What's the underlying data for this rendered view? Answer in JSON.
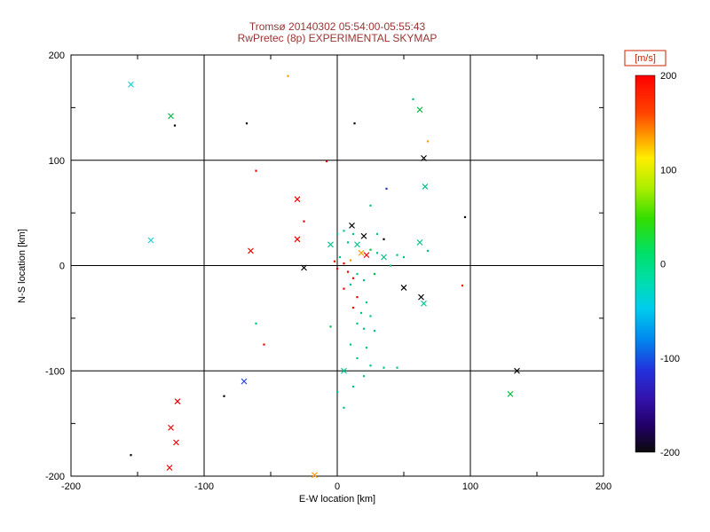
{
  "chart_data": {
    "type": "scatter",
    "title": "Tromsø 20140302 05:54:00-05:55:43",
    "subtitle": "RwPretec (8p) EXPERIMENTAL SKYMAP",
    "xlabel": "E-W location [km]",
    "ylabel": "N-S location [km]",
    "xlim": [
      -200,
      200
    ],
    "ylim": [
      -200,
      200
    ],
    "xticks": [
      -200,
      -100,
      0,
      100,
      200
    ],
    "yticks": [
      -200,
      -100,
      0,
      100,
      200
    ],
    "grid": true,
    "colorbar": {
      "label": "[m/s]",
      "min": -200,
      "max": 200,
      "ticks": [
        {
          "v": 200,
          "color": "#cc2200"
        },
        {
          "v": 100,
          "color": "#000000"
        },
        {
          "v": 0,
          "color": "#000000"
        },
        {
          "v": -100,
          "color": "#000000"
        },
        {
          "v": -200,
          "color": "#000000"
        }
      ],
      "gradient": [
        {
          "pos": 0.0,
          "color": "#ff0000"
        },
        {
          "pos": 0.1,
          "color": "#ff4400"
        },
        {
          "pos": 0.16,
          "color": "#ff9900"
        },
        {
          "pos": 0.22,
          "color": "#ffee00"
        },
        {
          "pos": 0.3,
          "color": "#aaee00"
        },
        {
          "pos": 0.38,
          "color": "#33dd00"
        },
        {
          "pos": 0.47,
          "color": "#00e066"
        },
        {
          "pos": 0.55,
          "color": "#00ddb0"
        },
        {
          "pos": 0.62,
          "color": "#00ccee"
        },
        {
          "pos": 0.7,
          "color": "#0088ee"
        },
        {
          "pos": 0.78,
          "color": "#2233dd"
        },
        {
          "pos": 0.86,
          "color": "#3311aa"
        },
        {
          "pos": 0.93,
          "color": "#220066"
        },
        {
          "pos": 1.0,
          "color": "#0a0a0a"
        }
      ]
    },
    "points": [
      [
        -120,
        -129,
        "x",
        "#ee0000",
        200
      ],
      [
        -125,
        -154,
        "x",
        "#ee0000",
        200
      ],
      [
        -121,
        -168,
        "x",
        "#ee0000",
        200
      ],
      [
        -126,
        -192,
        "x",
        "#ee0000",
        200
      ],
      [
        -65,
        14,
        "x",
        "#ee0000",
        200
      ],
      [
        -30,
        63,
        "x",
        "#ee0000",
        200
      ],
      [
        -30,
        25,
        "x",
        "#ee0000",
        200
      ],
      [
        22,
        10,
        "x",
        "#ee0000",
        200
      ],
      [
        -61,
        90,
        "d",
        "#ee0000",
        200
      ],
      [
        -8,
        99,
        "d",
        "#ee0000",
        200
      ],
      [
        -25,
        42,
        "d",
        "#ee0000",
        200
      ],
      [
        94,
        -19,
        "d",
        "#ee0000",
        200
      ],
      [
        -55,
        -75,
        "d",
        "#ee0000",
        200
      ],
      [
        0,
        -3,
        "d",
        "#ee0000",
        200
      ],
      [
        8,
        -6,
        "d",
        "#ee0000",
        200
      ],
      [
        12,
        -12,
        "d",
        "#ee0000",
        200
      ],
      [
        5,
        -22,
        "d",
        "#ee0000",
        200
      ],
      [
        15,
        -30,
        "d",
        "#ee0000",
        200
      ],
      [
        12,
        -40,
        "d",
        "#ee0000",
        200
      ],
      [
        -2,
        4,
        "d",
        "#ee0000",
        200
      ],
      [
        5,
        2,
        "d",
        "#ee0000",
        200
      ],
      [
        18,
        12,
        "x",
        "#ff9900",
        150
      ],
      [
        -17,
        -199,
        "x",
        "#ff9900",
        150
      ],
      [
        10,
        5,
        "d",
        "#ff9900",
        150
      ],
      [
        68,
        118,
        "d",
        "#ff9900",
        150
      ],
      [
        -37,
        180,
        "d",
        "#ff9900",
        150
      ],
      [
        -125,
        142,
        "x",
        "#00bb44",
        70
      ],
      [
        62,
        148,
        "x",
        "#00bb44",
        70
      ],
      [
        130,
        -122,
        "x",
        "#00bb44",
        70
      ],
      [
        25,
        15,
        "d",
        "#00bb44",
        70
      ],
      [
        -5,
        -58,
        "d",
        "#00bb44",
        70
      ],
      [
        28,
        -8,
        "d",
        "#00bb44",
        70
      ],
      [
        66,
        75,
        "x",
        "#00c28a",
        10
      ],
      [
        15,
        20,
        "x",
        "#00c28a",
        10
      ],
      [
        62,
        22,
        "x",
        "#00c28a",
        10
      ],
      [
        35,
        8,
        "x",
        "#00c28a",
        10
      ],
      [
        -5,
        20,
        "x",
        "#00c28a",
        10
      ],
      [
        5,
        -100,
        "x",
        "#00c28a",
        10
      ],
      [
        65,
        -36,
        "x",
        "#00c28a",
        10
      ],
      [
        57,
        158,
        "d",
        "#00c28a",
        10
      ],
      [
        25,
        57,
        "d",
        "#00c28a",
        10
      ],
      [
        5,
        33,
        "d",
        "#00c28a",
        10
      ],
      [
        12,
        30,
        "d",
        "#00c28a",
        10
      ],
      [
        8,
        22,
        "d",
        "#00c28a",
        10
      ],
      [
        30,
        12,
        "d",
        "#00c28a",
        10
      ],
      [
        45,
        10,
        "d",
        "#00c28a",
        10
      ],
      [
        50,
        8,
        "d",
        "#00c28a",
        10
      ],
      [
        2,
        8,
        "d",
        "#00c28a",
        10
      ],
      [
        68,
        14,
        "d",
        "#00c28a",
        10
      ],
      [
        0,
        30,
        "d",
        "#00c28a",
        10
      ],
      [
        30,
        30,
        "d",
        "#00c28a",
        10
      ],
      [
        40,
        0,
        "d",
        "#00c28a",
        10
      ],
      [
        15,
        -8,
        "d",
        "#00c28a",
        10
      ],
      [
        20,
        -14,
        "d",
        "#00c28a",
        10
      ],
      [
        10,
        -18,
        "d",
        "#00c28a",
        10
      ],
      [
        22,
        -35,
        "d",
        "#00c28a",
        10
      ],
      [
        18,
        -45,
        "d",
        "#00c28a",
        10
      ],
      [
        25,
        -48,
        "d",
        "#00c28a",
        10
      ],
      [
        15,
        -55,
        "d",
        "#00c28a",
        10
      ],
      [
        20,
        -60,
        "d",
        "#00c28a",
        10
      ],
      [
        28,
        -62,
        "d",
        "#00c28a",
        10
      ],
      [
        -61,
        -55,
        "d",
        "#00c28a",
        10
      ],
      [
        10,
        -75,
        "d",
        "#00c28a",
        10
      ],
      [
        22,
        -78,
        "d",
        "#00c28a",
        10
      ],
      [
        15,
        -88,
        "d",
        "#00c28a",
        10
      ],
      [
        25,
        -95,
        "d",
        "#00c28a",
        10
      ],
      [
        35,
        -97,
        "d",
        "#00c28a",
        10
      ],
      [
        45,
        -97,
        "d",
        "#00c28a",
        10
      ],
      [
        20,
        -105,
        "d",
        "#00c28a",
        10
      ],
      [
        12,
        -115,
        "d",
        "#00c28a",
        10
      ],
      [
        0,
        -120,
        "d",
        "#00c28a",
        10
      ],
      [
        5,
        -135,
        "d",
        "#00c28a",
        10
      ],
      [
        -155,
        172,
        "x",
        "#22cccc",
        -30
      ],
      [
        -140,
        24,
        "x",
        "#22cccc",
        -30
      ],
      [
        -70,
        -110,
        "x",
        "#2244dd",
        -120
      ],
      [
        37,
        73,
        "d",
        "#223399",
        -140
      ],
      [
        -122,
        133,
        "d",
        "#000000",
        -200
      ],
      [
        -68,
        135,
        "d",
        "#000000",
        -200
      ],
      [
        13,
        135,
        "d",
        "#000000",
        -200
      ],
      [
        96,
        46,
        "d",
        "#000000",
        -200
      ],
      [
        -85,
        -124,
        "d",
        "#000000",
        -200
      ],
      [
        -155,
        -180,
        "d",
        "#000000",
        -200
      ],
      [
        35,
        25,
        "d",
        "#000000",
        -200
      ],
      [
        65,
        102,
        "x",
        "#000000",
        -200
      ],
      [
        11,
        38,
        "x",
        "#000000",
        -200
      ],
      [
        20,
        28,
        "x",
        "#000000",
        -200
      ],
      [
        -25,
        -2,
        "x",
        "#000000",
        -200
      ],
      [
        50,
        -21,
        "x",
        "#000000",
        -200
      ],
      [
        63,
        -30,
        "x",
        "#000000",
        -200
      ],
      [
        135,
        -100,
        "x",
        "#000000",
        -200
      ]
    ]
  }
}
